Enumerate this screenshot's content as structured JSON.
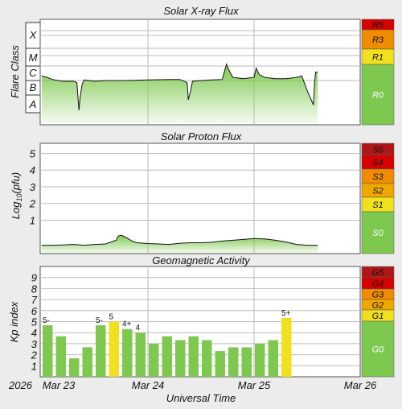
{
  "x_axis": {
    "title": "Universal Time",
    "year_label": "2026",
    "tick_labels": [
      "Mar 23",
      "Mar 24",
      "Mar 25",
      "Mar 26"
    ],
    "range_days": [
      0,
      3
    ]
  },
  "colors": {
    "background": "#ececec",
    "plot_bg": "#ffffff",
    "grid": "#bbbbbb",
    "line": "#111111",
    "fill": "#7ec850",
    "bar": "#7ec850",
    "bar_highlight": "#f0e01e",
    "scale_red": "#d60000",
    "scale_dkred": "#b01818",
    "scale_orange": "#f08c00",
    "scale_yellow": "#f0e01e",
    "scale_green": "#7ec850"
  },
  "panels": {
    "xray": {
      "title": "Solar X-ray Flux",
      "ylabel": "Flare Class",
      "class_labels": [
        "X",
        "M",
        "C",
        "B",
        "A"
      ],
      "scale": [
        {
          "label": "R5",
          "color": "#d60000"
        },
        {
          "label": "R3",
          "color": "#f08c00"
        },
        {
          "label": "R1",
          "color": "#f0e01e"
        },
        {
          "label": "R0",
          "color": "#7ec850"
        }
      ]
    },
    "proton": {
      "title": "Solar Proton Flux",
      "ylabel": "Log10(pfu)",
      "ylabel_main": "Log",
      "ylabel_sub": "10",
      "ylabel_rest": "(pfu)",
      "tick_labels": [
        "5",
        "4",
        "3",
        "2",
        "1"
      ],
      "scale": [
        {
          "label": "S5",
          "color": "#b01818"
        },
        {
          "label": "S4",
          "color": "#d60000"
        },
        {
          "label": "S3",
          "color": "#f08c00"
        },
        {
          "label": "S2",
          "color": "#f0a800"
        },
        {
          "label": "S1",
          "color": "#f0e01e"
        },
        {
          "label": "S0",
          "color": "#7ec850"
        }
      ]
    },
    "kp": {
      "title": "Geomagnetic Activity",
      "ylabel": "Kp index",
      "tick_labels": [
        "9",
        "8",
        "7",
        "6",
        "5",
        "4",
        "3",
        "2",
        "1"
      ],
      "scale": [
        {
          "label": "G5",
          "color": "#b01818"
        },
        {
          "label": "G4",
          "color": "#d60000"
        },
        {
          "label": "G3",
          "color": "#f08c00"
        },
        {
          "label": "G2",
          "color": "#f0a800"
        },
        {
          "label": "G1",
          "color": "#f0e01e"
        },
        {
          "label": "G0",
          "color": "#7ec850"
        }
      ]
    }
  },
  "chart_data": [
    {
      "type": "area",
      "title": "Solar X-ray Flux",
      "ylabel": "Flare Class",
      "x_unit": "days since Mar 23 00:00 UT",
      "y_unit": "flare class level (A=1, B=2, C=3, M=4, X=5)",
      "xlim": [
        0,
        3
      ],
      "ylim": [
        1,
        5
      ],
      "x": [
        0.0,
        0.05,
        0.1,
        0.2,
        0.3,
        0.33,
        0.35,
        0.36,
        0.38,
        0.4,
        0.5,
        0.6,
        0.8,
        1.0,
        1.2,
        1.3,
        1.37,
        1.38,
        1.4,
        1.42,
        1.5,
        1.6,
        1.7,
        1.74,
        1.76,
        1.8,
        1.9,
        2.0,
        2.02,
        2.05,
        2.1,
        2.2,
        2.3,
        2.4,
        2.45,
        2.5,
        2.56,
        2.57,
        2.58,
        2.6
      ],
      "values": [
        2.85,
        2.8,
        2.72,
        2.65,
        2.65,
        2.6,
        1.55,
        2.0,
        2.55,
        2.7,
        2.65,
        2.68,
        2.68,
        2.7,
        2.72,
        2.72,
        2.6,
        1.95,
        2.25,
        2.65,
        2.68,
        2.7,
        2.72,
        3.3,
        3.1,
        2.8,
        2.75,
        2.8,
        3.15,
        2.9,
        2.8,
        2.75,
        2.75,
        2.8,
        2.85,
        2.3,
        1.75,
        2.6,
        3.0,
        3.0
      ]
    },
    {
      "type": "area",
      "title": "Solar Proton Flux",
      "ylabel": "Log10(pfu)",
      "x_unit": "days since Mar 23 00:00 UT",
      "y_unit": "log10(pfu)",
      "xlim": [
        0,
        3
      ],
      "ylim": [
        -1,
        5.6
      ],
      "x": [
        0.0,
        0.1,
        0.2,
        0.3,
        0.4,
        0.5,
        0.6,
        0.7,
        0.72,
        0.75,
        0.8,
        0.85,
        0.9,
        1.0,
        1.1,
        1.2,
        1.3,
        1.4,
        1.5,
        1.6,
        1.7,
        1.8,
        1.9,
        2.0,
        2.1,
        2.2,
        2.3,
        2.4,
        2.5,
        2.6
      ],
      "values": [
        -0.5,
        -0.5,
        -0.48,
        -0.45,
        -0.5,
        -0.45,
        -0.42,
        -0.2,
        0.05,
        0.1,
        -0.05,
        -0.25,
        -0.35,
        -0.4,
        -0.42,
        -0.45,
        -0.38,
        -0.35,
        -0.35,
        -0.32,
        -0.25,
        -0.2,
        -0.15,
        -0.1,
        -0.12,
        -0.2,
        -0.3,
        -0.45,
        -0.5,
        -0.5
      ]
    },
    {
      "type": "bar",
      "title": "Geomagnetic Activity",
      "ylabel": "Kp index",
      "x_unit": "days since Mar 23 00:00 UT (start of 3-hour interval)",
      "xlim": [
        0,
        3
      ],
      "ylim": [
        0,
        10
      ],
      "x": [
        0.0,
        0.125,
        0.25,
        0.375,
        0.5,
        0.625,
        0.75,
        0.875,
        1.0,
        1.125,
        1.25,
        1.375,
        1.5,
        1.625,
        1.75,
        1.875,
        2.0,
        2.125,
        2.25
      ],
      "values": [
        4.67,
        3.67,
        1.67,
        2.67,
        4.67,
        5.0,
        4.33,
        4.0,
        3.0,
        3.67,
        3.33,
        3.67,
        3.33,
        2.33,
        2.67,
        2.67,
        3.0,
        3.33,
        5.33
      ],
      "labels": [
        "5-",
        "",
        "",
        "",
        "5-",
        "5",
        "4+",
        "4",
        "",
        "",
        "",
        "",
        "",
        "",
        "",
        "",
        "",
        "",
        "5+"
      ],
      "highlight_min": 5
    }
  ]
}
